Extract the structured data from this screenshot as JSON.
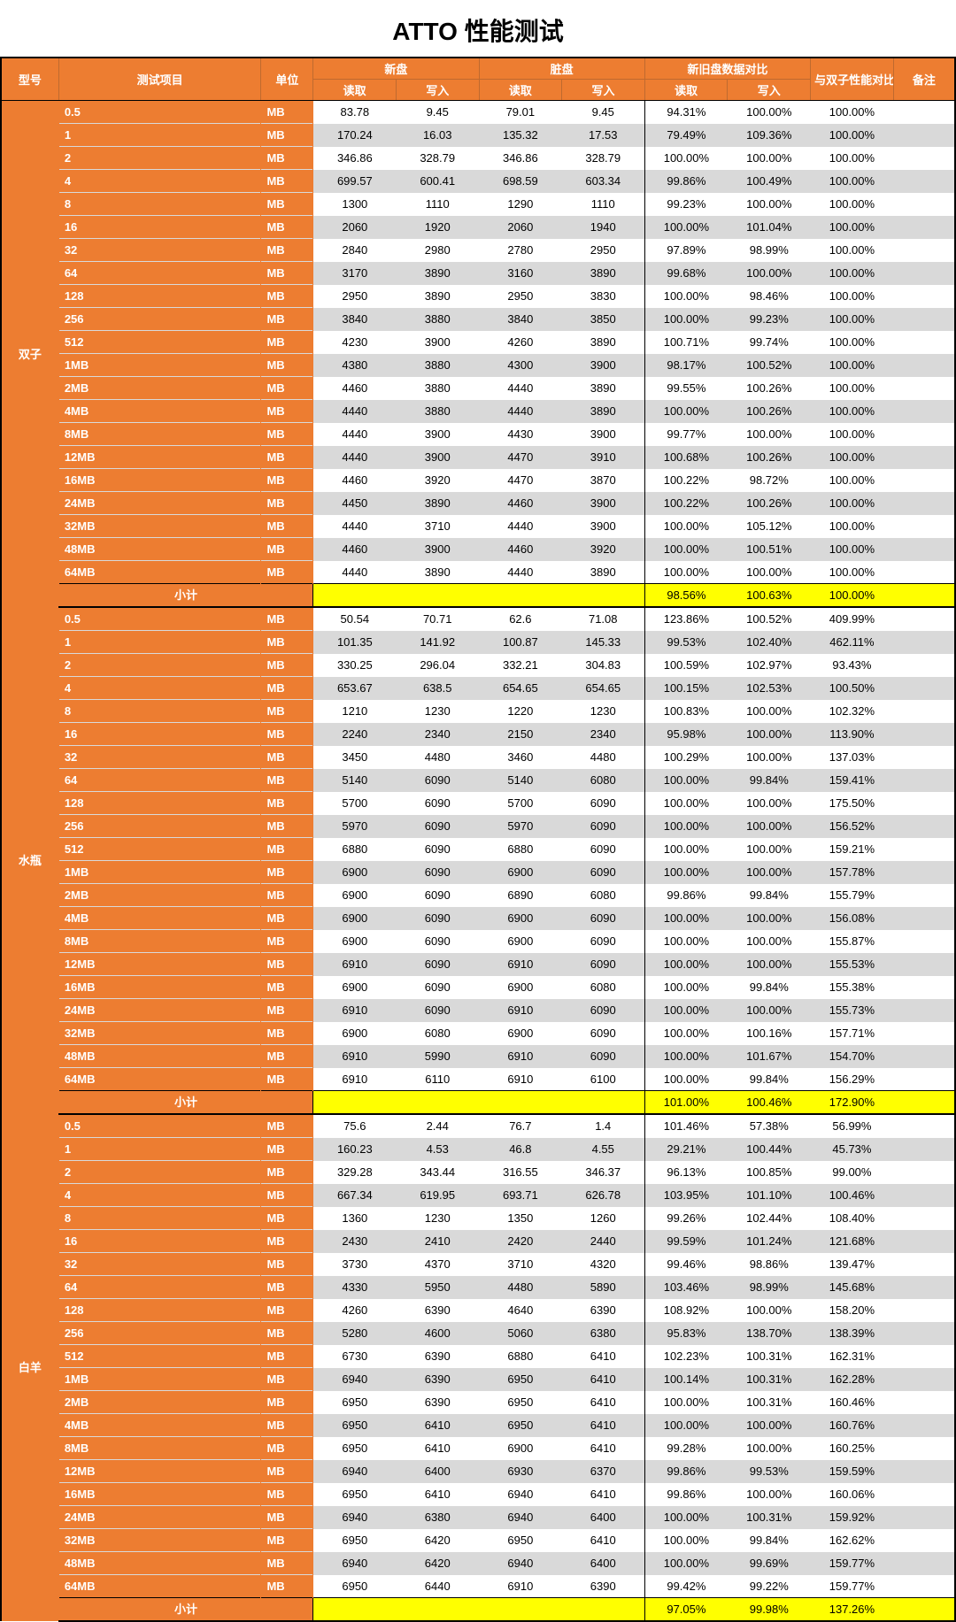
{
  "title": "ATTO 性能测试",
  "headers": {
    "model": "型号",
    "item": "测试项目",
    "unit": "单位",
    "new_disk": "新盘",
    "dirty_disk": "脏盘",
    "compare": "新旧盘数据对比",
    "twin_compare": "与双子性能对比",
    "remarks": "备注",
    "read": "读取",
    "write": "写入"
  },
  "subtotal_label": "小计",
  "unit_value": "MB",
  "colors": {
    "accent": "#ed7d31",
    "alt_row": "#d9d9d9",
    "highlight": "#ffff00",
    "border": "#000000",
    "text_on_accent": "#ffffff"
  },
  "groups": [
    {
      "model": "双子",
      "rows": [
        {
          "item": "0.5",
          "nr": "83.78",
          "nw": "9.45",
          "dr": "79.01",
          "dw": "9.45",
          "cr": "94.31%",
          "cw": "100.00%",
          "tw": "100.00%"
        },
        {
          "item": "1",
          "nr": "170.24",
          "nw": "16.03",
          "dr": "135.32",
          "dw": "17.53",
          "cr": "79.49%",
          "cw": "109.36%",
          "tw": "100.00%"
        },
        {
          "item": "2",
          "nr": "346.86",
          "nw": "328.79",
          "dr": "346.86",
          "dw": "328.79",
          "cr": "100.00%",
          "cw": "100.00%",
          "tw": "100.00%"
        },
        {
          "item": "4",
          "nr": "699.57",
          "nw": "600.41",
          "dr": "698.59",
          "dw": "603.34",
          "cr": "99.86%",
          "cw": "100.49%",
          "tw": "100.00%"
        },
        {
          "item": "8",
          "nr": "1300",
          "nw": "1110",
          "dr": "1290",
          "dw": "1110",
          "cr": "99.23%",
          "cw": "100.00%",
          "tw": "100.00%"
        },
        {
          "item": "16",
          "nr": "2060",
          "nw": "1920",
          "dr": "2060",
          "dw": "1940",
          "cr": "100.00%",
          "cw": "101.04%",
          "tw": "100.00%"
        },
        {
          "item": "32",
          "nr": "2840",
          "nw": "2980",
          "dr": "2780",
          "dw": "2950",
          "cr": "97.89%",
          "cw": "98.99%",
          "tw": "100.00%"
        },
        {
          "item": "64",
          "nr": "3170",
          "nw": "3890",
          "dr": "3160",
          "dw": "3890",
          "cr": "99.68%",
          "cw": "100.00%",
          "tw": "100.00%"
        },
        {
          "item": "128",
          "nr": "2950",
          "nw": "3890",
          "dr": "2950",
          "dw": "3830",
          "cr": "100.00%",
          "cw": "98.46%",
          "tw": "100.00%"
        },
        {
          "item": "256",
          "nr": "3840",
          "nw": "3880",
          "dr": "3840",
          "dw": "3850",
          "cr": "100.00%",
          "cw": "99.23%",
          "tw": "100.00%"
        },
        {
          "item": "512",
          "nr": "4230",
          "nw": "3900",
          "dr": "4260",
          "dw": "3890",
          "cr": "100.71%",
          "cw": "99.74%",
          "tw": "100.00%"
        },
        {
          "item": "1MB",
          "nr": "4380",
          "nw": "3880",
          "dr": "4300",
          "dw": "3900",
          "cr": "98.17%",
          "cw": "100.52%",
          "tw": "100.00%"
        },
        {
          "item": "2MB",
          "nr": "4460",
          "nw": "3880",
          "dr": "4440",
          "dw": "3890",
          "cr": "99.55%",
          "cw": "100.26%",
          "tw": "100.00%"
        },
        {
          "item": "4MB",
          "nr": "4440",
          "nw": "3880",
          "dr": "4440",
          "dw": "3890",
          "cr": "100.00%",
          "cw": "100.26%",
          "tw": "100.00%"
        },
        {
          "item": "8MB",
          "nr": "4440",
          "nw": "3900",
          "dr": "4430",
          "dw": "3900",
          "cr": "99.77%",
          "cw": "100.00%",
          "tw": "100.00%"
        },
        {
          "item": "12MB",
          "nr": "4440",
          "nw": "3900",
          "dr": "4470",
          "dw": "3910",
          "cr": "100.68%",
          "cw": "100.26%",
          "tw": "100.00%"
        },
        {
          "item": "16MB",
          "nr": "4460",
          "nw": "3920",
          "dr": "4470",
          "dw": "3870",
          "cr": "100.22%",
          "cw": "98.72%",
          "tw": "100.00%"
        },
        {
          "item": "24MB",
          "nr": "4450",
          "nw": "3890",
          "dr": "4460",
          "dw": "3900",
          "cr": "100.22%",
          "cw": "100.26%",
          "tw": "100.00%"
        },
        {
          "item": "32MB",
          "nr": "4440",
          "nw": "3710",
          "dr": "4440",
          "dw": "3900",
          "cr": "100.00%",
          "cw": "105.12%",
          "tw": "100.00%"
        },
        {
          "item": "48MB",
          "nr": "4460",
          "nw": "3900",
          "dr": "4460",
          "dw": "3920",
          "cr": "100.00%",
          "cw": "100.51%",
          "tw": "100.00%"
        },
        {
          "item": "64MB",
          "nr": "4440",
          "nw": "3890",
          "dr": "4440",
          "dw": "3890",
          "cr": "100.00%",
          "cw": "100.00%",
          "tw": "100.00%"
        }
      ],
      "subtotal": {
        "cr": "98.56%",
        "cw": "100.63%",
        "tw": "100.00%"
      }
    },
    {
      "model": "水瓶",
      "rows": [
        {
          "item": "0.5",
          "nr": "50.54",
          "nw": "70.71",
          "dr": "62.6",
          "dw": "71.08",
          "cr": "123.86%",
          "cw": "100.52%",
          "tw": "409.99%"
        },
        {
          "item": "1",
          "nr": "101.35",
          "nw": "141.92",
          "dr": "100.87",
          "dw": "145.33",
          "cr": "99.53%",
          "cw": "102.40%",
          "tw": "462.11%"
        },
        {
          "item": "2",
          "nr": "330.25",
          "nw": "296.04",
          "dr": "332.21",
          "dw": "304.83",
          "cr": "100.59%",
          "cw": "102.97%",
          "tw": "93.43%"
        },
        {
          "item": "4",
          "nr": "653.67",
          "nw": "638.5",
          "dr": "654.65",
          "dw": "654.65",
          "cr": "100.15%",
          "cw": "102.53%",
          "tw": "100.50%"
        },
        {
          "item": "8",
          "nr": "1210",
          "nw": "1230",
          "dr": "1220",
          "dw": "1230",
          "cr": "100.83%",
          "cw": "100.00%",
          "tw": "102.32%"
        },
        {
          "item": "16",
          "nr": "2240",
          "nw": "2340",
          "dr": "2150",
          "dw": "2340",
          "cr": "95.98%",
          "cw": "100.00%",
          "tw": "113.90%"
        },
        {
          "item": "32",
          "nr": "3450",
          "nw": "4480",
          "dr": "3460",
          "dw": "4480",
          "cr": "100.29%",
          "cw": "100.00%",
          "tw": "137.03%"
        },
        {
          "item": "64",
          "nr": "5140",
          "nw": "6090",
          "dr": "5140",
          "dw": "6080",
          "cr": "100.00%",
          "cw": "99.84%",
          "tw": "159.41%"
        },
        {
          "item": "128",
          "nr": "5700",
          "nw": "6090",
          "dr": "5700",
          "dw": "6090",
          "cr": "100.00%",
          "cw": "100.00%",
          "tw": "175.50%"
        },
        {
          "item": "256",
          "nr": "5970",
          "nw": "6090",
          "dr": "5970",
          "dw": "6090",
          "cr": "100.00%",
          "cw": "100.00%",
          "tw": "156.52%"
        },
        {
          "item": "512",
          "nr": "6880",
          "nw": "6090",
          "dr": "6880",
          "dw": "6090",
          "cr": "100.00%",
          "cw": "100.00%",
          "tw": "159.21%"
        },
        {
          "item": "1MB",
          "nr": "6900",
          "nw": "6090",
          "dr": "6900",
          "dw": "6090",
          "cr": "100.00%",
          "cw": "100.00%",
          "tw": "157.78%"
        },
        {
          "item": "2MB",
          "nr": "6900",
          "nw": "6090",
          "dr": "6890",
          "dw": "6080",
          "cr": "99.86%",
          "cw": "99.84%",
          "tw": "155.79%"
        },
        {
          "item": "4MB",
          "nr": "6900",
          "nw": "6090",
          "dr": "6900",
          "dw": "6090",
          "cr": "100.00%",
          "cw": "100.00%",
          "tw": "156.08%"
        },
        {
          "item": "8MB",
          "nr": "6900",
          "nw": "6090",
          "dr": "6900",
          "dw": "6090",
          "cr": "100.00%",
          "cw": "100.00%",
          "tw": "155.87%"
        },
        {
          "item": "12MB",
          "nr": "6910",
          "nw": "6090",
          "dr": "6910",
          "dw": "6090",
          "cr": "100.00%",
          "cw": "100.00%",
          "tw": "155.53%"
        },
        {
          "item": "16MB",
          "nr": "6900",
          "nw": "6090",
          "dr": "6900",
          "dw": "6080",
          "cr": "100.00%",
          "cw": "99.84%",
          "tw": "155.38%"
        },
        {
          "item": "24MB",
          "nr": "6910",
          "nw": "6090",
          "dr": "6910",
          "dw": "6090",
          "cr": "100.00%",
          "cw": "100.00%",
          "tw": "155.73%"
        },
        {
          "item": "32MB",
          "nr": "6900",
          "nw": "6080",
          "dr": "6900",
          "dw": "6090",
          "cr": "100.00%",
          "cw": "100.16%",
          "tw": "157.71%"
        },
        {
          "item": "48MB",
          "nr": "6910",
          "nw": "5990",
          "dr": "6910",
          "dw": "6090",
          "cr": "100.00%",
          "cw": "101.67%",
          "tw": "154.70%"
        },
        {
          "item": "64MB",
          "nr": "6910",
          "nw": "6110",
          "dr": "6910",
          "dw": "6100",
          "cr": "100.00%",
          "cw": "99.84%",
          "tw": "156.29%"
        }
      ],
      "subtotal": {
        "cr": "101.00%",
        "cw": "100.46%",
        "tw": "172.90%"
      }
    },
    {
      "model": "白羊",
      "rows": [
        {
          "item": "0.5",
          "nr": "75.6",
          "nw": "2.44",
          "dr": "76.7",
          "dw": "1.4",
          "cr": "101.46%",
          "cw": "57.38%",
          "tw": "56.99%"
        },
        {
          "item": "1",
          "nr": "160.23",
          "nw": "4.53",
          "dr": "46.8",
          "dw": "4.55",
          "cr": "29.21%",
          "cw": "100.44%",
          "tw": "45.73%"
        },
        {
          "item": "2",
          "nr": "329.28",
          "nw": "343.44",
          "dr": "316.55",
          "dw": "346.37",
          "cr": "96.13%",
          "cw": "100.85%",
          "tw": "99.00%"
        },
        {
          "item": "4",
          "nr": "667.34",
          "nw": "619.95",
          "dr": "693.71",
          "dw": "626.78",
          "cr": "103.95%",
          "cw": "101.10%",
          "tw": "100.46%"
        },
        {
          "item": "8",
          "nr": "1360",
          "nw": "1230",
          "dr": "1350",
          "dw": "1260",
          "cr": "99.26%",
          "cw": "102.44%",
          "tw": "108.40%"
        },
        {
          "item": "16",
          "nr": "2430",
          "nw": "2410",
          "dr": "2420",
          "dw": "2440",
          "cr": "99.59%",
          "cw": "101.24%",
          "tw": "121.68%"
        },
        {
          "item": "32",
          "nr": "3730",
          "nw": "4370",
          "dr": "3710",
          "dw": "4320",
          "cr": "99.46%",
          "cw": "98.86%",
          "tw": "139.47%"
        },
        {
          "item": "64",
          "nr": "4330",
          "nw": "5950",
          "dr": "4480",
          "dw": "5890",
          "cr": "103.46%",
          "cw": "98.99%",
          "tw": "145.68%"
        },
        {
          "item": "128",
          "nr": "4260",
          "nw": "6390",
          "dr": "4640",
          "dw": "6390",
          "cr": "108.92%",
          "cw": "100.00%",
          "tw": "158.20%"
        },
        {
          "item": "256",
          "nr": "5280",
          "nw": "4600",
          "dr": "5060",
          "dw": "6380",
          "cr": "95.83%",
          "cw": "138.70%",
          "tw": "138.39%"
        },
        {
          "item": "512",
          "nr": "6730",
          "nw": "6390",
          "dr": "6880",
          "dw": "6410",
          "cr": "102.23%",
          "cw": "100.31%",
          "tw": "162.31%"
        },
        {
          "item": "1MB",
          "nr": "6940",
          "nw": "6390",
          "dr": "6950",
          "dw": "6410",
          "cr": "100.14%",
          "cw": "100.31%",
          "tw": "162.28%"
        },
        {
          "item": "2MB",
          "nr": "6950",
          "nw": "6390",
          "dr": "6950",
          "dw": "6410",
          "cr": "100.00%",
          "cw": "100.31%",
          "tw": "160.46%"
        },
        {
          "item": "4MB",
          "nr": "6950",
          "nw": "6410",
          "dr": "6950",
          "dw": "6410",
          "cr": "100.00%",
          "cw": "100.00%",
          "tw": "160.76%"
        },
        {
          "item": "8MB",
          "nr": "6950",
          "nw": "6410",
          "dr": "6900",
          "dw": "6410",
          "cr": "99.28%",
          "cw": "100.00%",
          "tw": "160.25%"
        },
        {
          "item": "12MB",
          "nr": "6940",
          "nw": "6400",
          "dr": "6930",
          "dw": "6370",
          "cr": "99.86%",
          "cw": "99.53%",
          "tw": "159.59%"
        },
        {
          "item": "16MB",
          "nr": "6950",
          "nw": "6410",
          "dr": "6940",
          "dw": "6410",
          "cr": "99.86%",
          "cw": "100.00%",
          "tw": "160.06%"
        },
        {
          "item": "24MB",
          "nr": "6940",
          "nw": "6380",
          "dr": "6940",
          "dw": "6400",
          "cr": "100.00%",
          "cw": "100.31%",
          "tw": "159.92%"
        },
        {
          "item": "32MB",
          "nr": "6950",
          "nw": "6420",
          "dr": "6950",
          "dw": "6410",
          "cr": "100.00%",
          "cw": "99.84%",
          "tw": "162.62%"
        },
        {
          "item": "48MB",
          "nr": "6940",
          "nw": "6420",
          "dr": "6940",
          "dw": "6400",
          "cr": "100.00%",
          "cw": "99.69%",
          "tw": "159.77%"
        },
        {
          "item": "64MB",
          "nr": "6950",
          "nw": "6440",
          "dr": "6910",
          "dw": "6390",
          "cr": "99.42%",
          "cw": "99.22%",
          "tw": "159.77%"
        }
      ],
      "subtotal": {
        "cr": "97.05%",
        "cw": "99.98%",
        "tw": "137.26%"
      }
    }
  ]
}
